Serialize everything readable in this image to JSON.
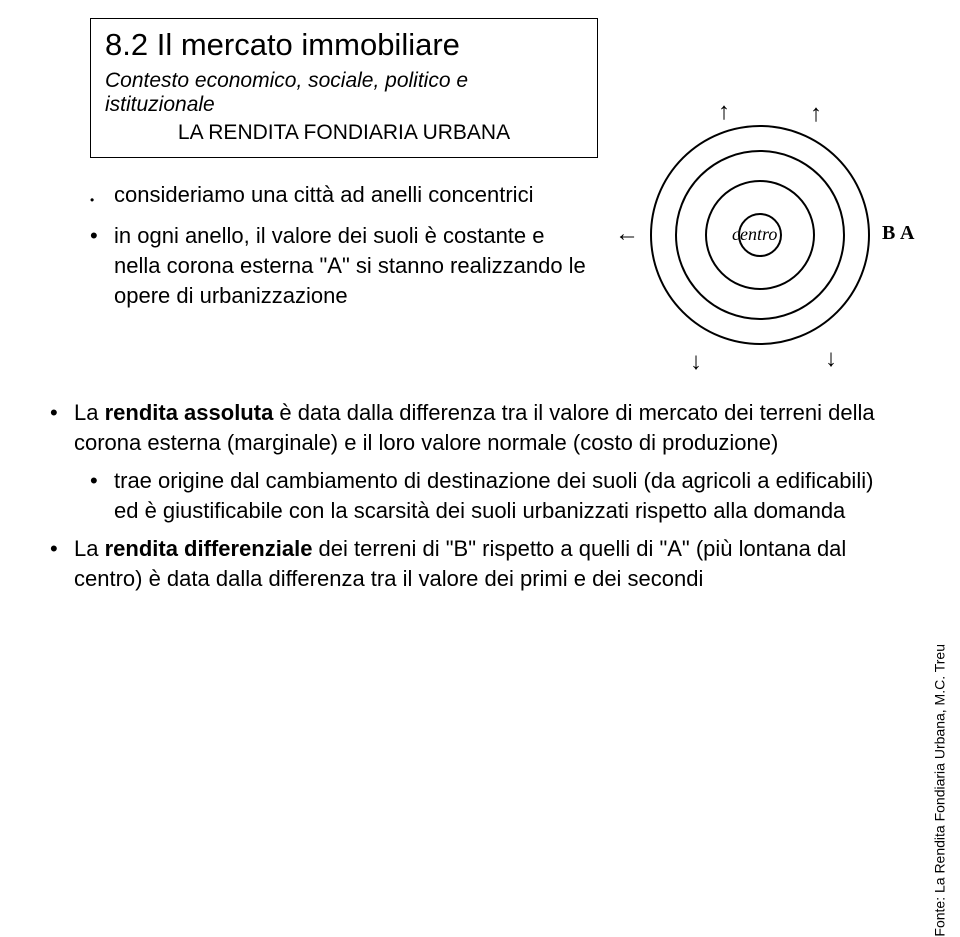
{
  "title": {
    "main": "8.2 Il mercato immobiliare",
    "sub1": "Contesto economico, sociale, politico e istituzionale",
    "sub2": "LA RENDITA FONDIARIA URBANA"
  },
  "upper_bullets": {
    "b1": "consideriamo una città ad anelli concentrici",
    "b2": "in ogni anello, il valore dei suoli è costante e nella corona esterna \"A\" si stanno realizzando le opere di urbanizzazione"
  },
  "lower": {
    "p1_a": "La ",
    "p1_b": "rendita assoluta",
    "p1_c": " è data dalla differenza tra il valore di mercato dei terreni della corona esterna (marginale) e il loro valore normale (costo di produzione)",
    "p2": "trae origine dal cambiamento di destinazione dei suoli (da agricoli a edificabili) ed è giustificabile con la scarsità dei suoli urbanizzati rispetto alla domanda",
    "p3_a": "La ",
    "p3_b": "rendita differenziale",
    "p3_c": " dei terreni di \"B\" rispetto a quelli di \"A\" (più lontana dal centro) è data dalla differenza tra il valore dei primi e dei secondi"
  },
  "diagram": {
    "centro": "centro",
    "B": "B",
    "A": "A",
    "arrow_left": "←",
    "arrow_up": "↑",
    "arrow_down": "↓",
    "ring_color": "#000000",
    "background": "#ffffff"
  },
  "side_caption": "Fonte: La Rendita Fondiaria Urbana, M.C. Treu",
  "glyphs": {
    "bullet_large": "•",
    "bullet_small": "•"
  }
}
